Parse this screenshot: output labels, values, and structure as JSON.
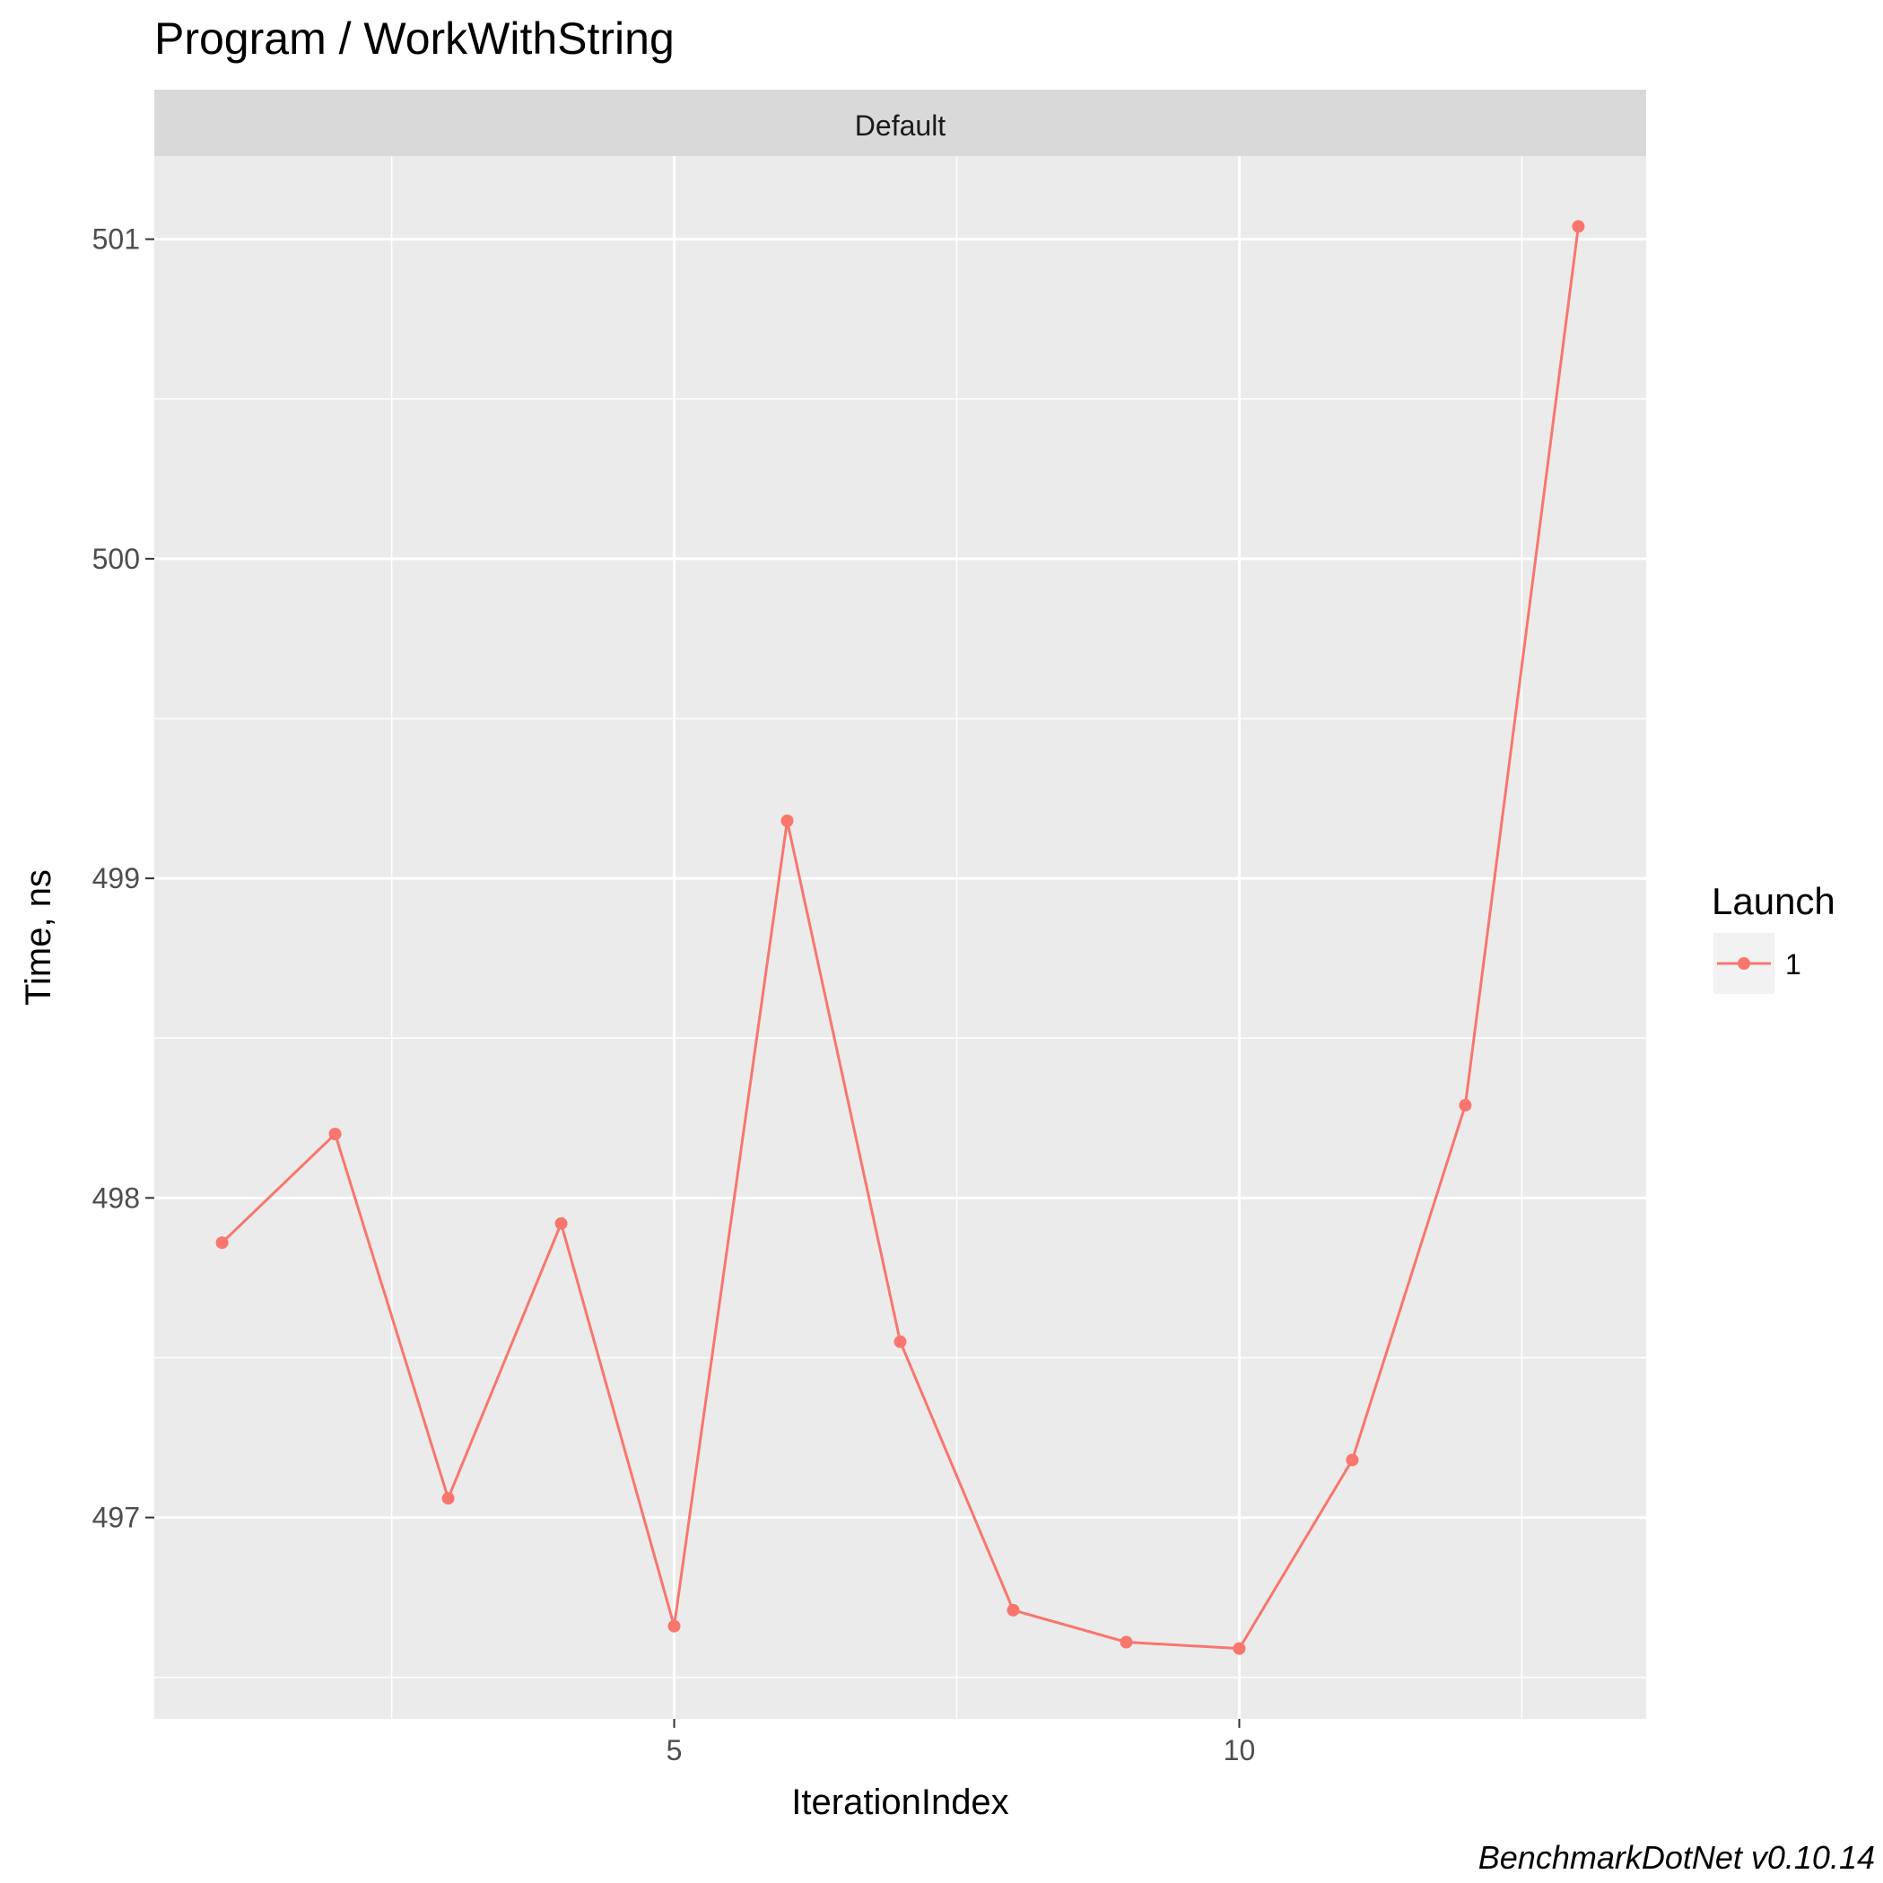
{
  "chart_data": {
    "type": "line",
    "title": "Program / WorkWithString",
    "facet_label": "Default",
    "xlabel": "IterationIndex",
    "ylabel": "Time, ns",
    "x_ticks": [
      5,
      10
    ],
    "y_ticks": [
      497,
      498,
      499,
      500,
      501
    ],
    "xlim": [
      0.4,
      13.6
    ],
    "ylim": [
      496.37,
      501.26
    ],
    "grid": true,
    "legend": {
      "title": "Launch",
      "position": "right"
    },
    "series": [
      {
        "name": "1",
        "color": "#F8766D",
        "x": [
          1,
          2,
          3,
          4,
          5,
          6,
          7,
          8,
          9,
          10,
          11,
          12,
          13
        ],
        "y": [
          497.86,
          498.2,
          497.06,
          497.92,
          496.66,
          499.18,
          497.55,
          496.71,
          496.61,
          496.59,
          497.18,
          498.29,
          501.04
        ]
      }
    ],
    "caption": "BenchmarkDotNet v0.10.14"
  }
}
